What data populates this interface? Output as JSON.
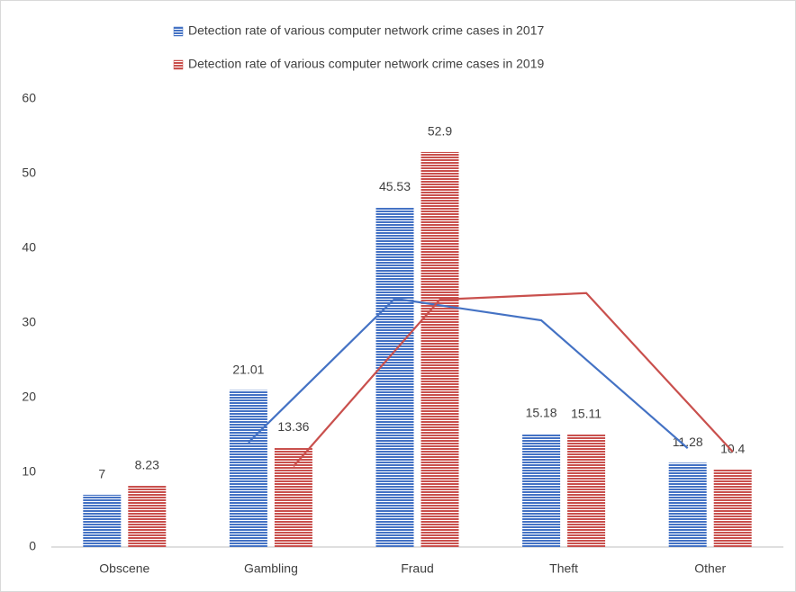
{
  "chart_data": {
    "type": "bar",
    "categories": [
      "Obscene",
      "Gambling",
      "Fraud",
      "Theft",
      "Other"
    ],
    "series": [
      {
        "name": "Detection rate of various computer network crime cases in 2017",
        "color": "#4472c4",
        "values": [
          7,
          21.01,
          45.53,
          15.18,
          11.28
        ],
        "moving_average": [
          null,
          14.0,
          33.27,
          30.36,
          13.23
        ]
      },
      {
        "name": "Detection rate of various computer network crime cases in 2019",
        "color": "#c9504d",
        "values": [
          8.23,
          13.36,
          52.9,
          15.11,
          10.4
        ],
        "moving_average": [
          null,
          10.8,
          33.13,
          34.0,
          12.76
        ]
      }
    ],
    "ylim": [
      0,
      60
    ],
    "yticks": [
      0,
      10,
      20,
      30,
      40,
      50,
      60
    ],
    "grid": false,
    "legend": "top"
  }
}
